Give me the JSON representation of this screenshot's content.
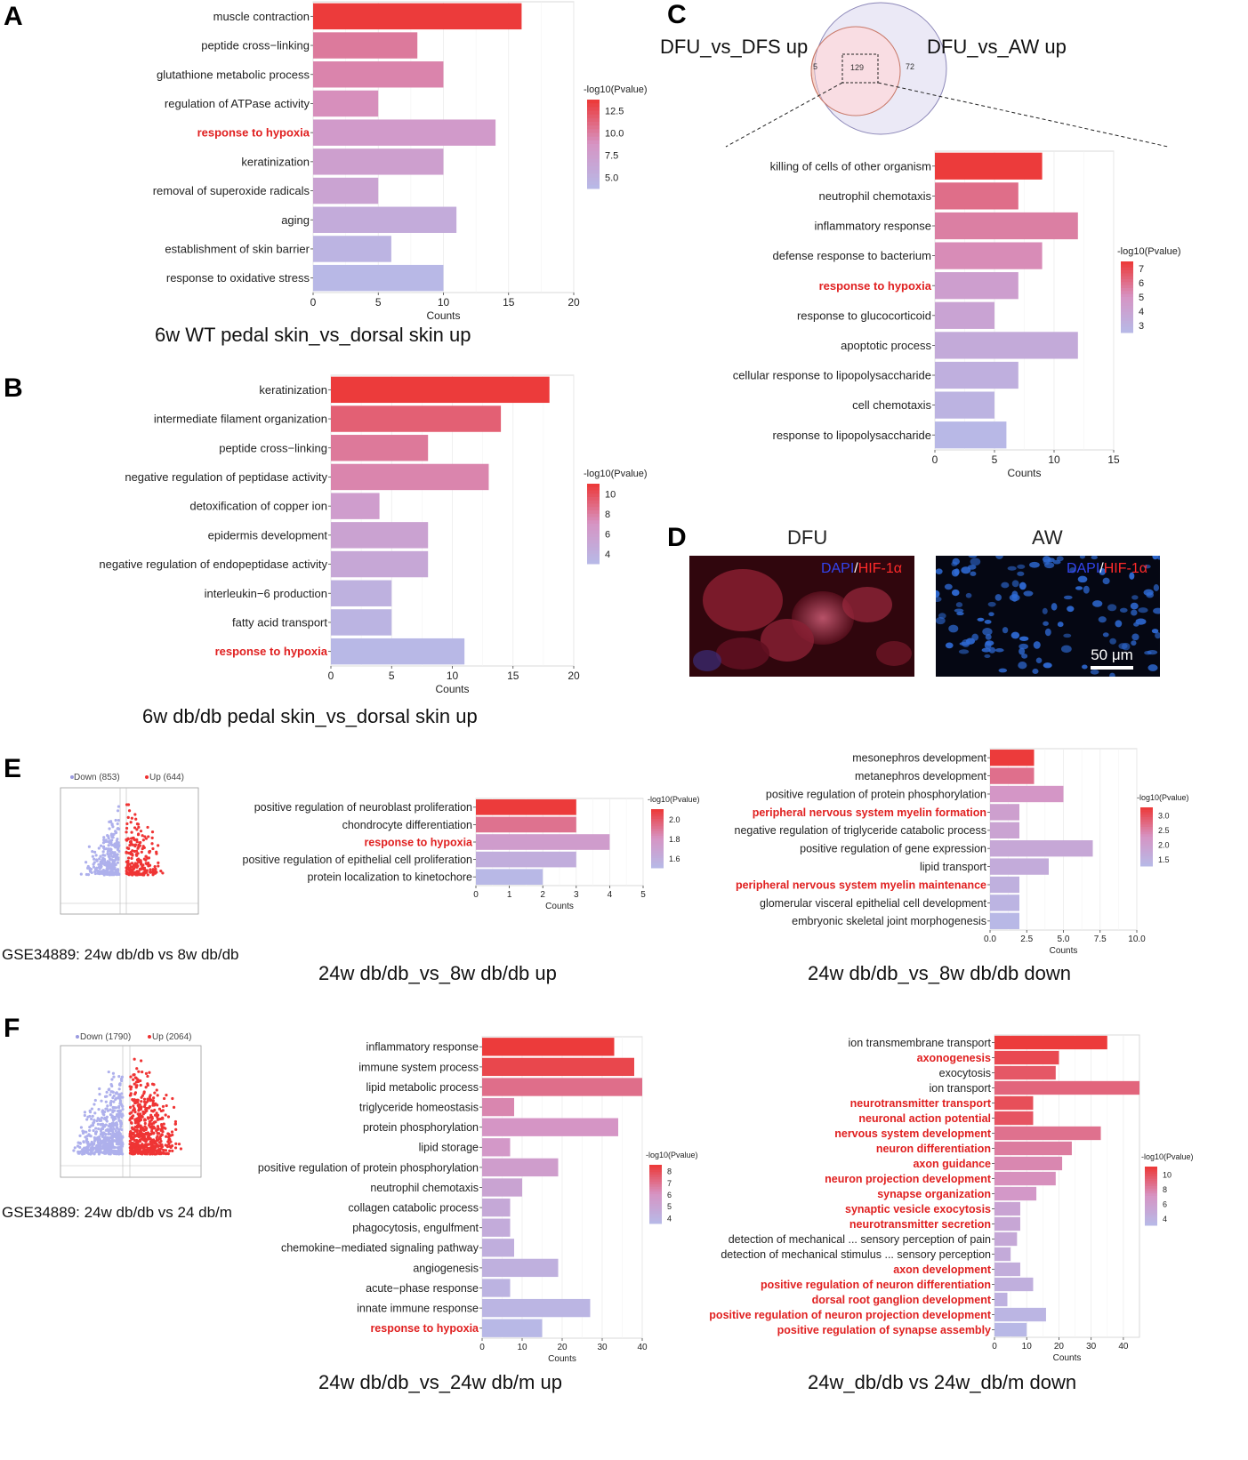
{
  "labels": {
    "A": "A",
    "B": "B",
    "C": "C",
    "D": "D",
    "E": "E",
    "F": "F"
  },
  "captions": {
    "A": "6w WT pedal skin_vs_dorsal skin up",
    "B": "6w db/db pedal skin_vs_dorsal skin up",
    "E1": "24w db/db_vs_8w db/db up",
    "E2": "24w db/db_vs_8w db/db down",
    "F1": "24w db/db_vs_24w db/m up",
    "F2": "24w_db/db vs 24w_db/m down"
  },
  "venn": {
    "left_label": "DFU_vs_DFS up",
    "right_label": "DFU_vs_AW up",
    "left_only": "5",
    "overlap": "129",
    "right_only": "72"
  },
  "micro": {
    "dfu_title": "DFU",
    "aw_title": "AW",
    "dapi": "DAPI",
    "slash": "/",
    "hif": "HIF-1α",
    "scale": "50 μm"
  },
  "volcano_e": {
    "down": "Down (853)",
    "up": "Up (644)",
    "caption": "GSE34889: 24w db/db vs 8w db/db"
  },
  "volcano_f": {
    "down": "Down (1790)",
    "up": "Up (2064)",
    "caption": "GSE34889: 24w db/db vs 24 db/m"
  },
  "chart_data": [
    {
      "id": "A",
      "type": "bar",
      "orientation": "horizontal",
      "categories": [
        "muscle contraction",
        "peptide cross−linking",
        "glutathione metabolic process",
        "regulation of ATPase activity",
        "response to hypoxia",
        "keratinization",
        "removal of superoxide radicals",
        "aging",
        "establishment of skin barrier",
        "response to oxidative stress"
      ],
      "values": [
        16,
        8,
        10,
        5,
        14,
        10,
        5,
        11,
        6,
        10
      ],
      "color_values": [
        13,
        10,
        9.5,
        9,
        8,
        7.5,
        7,
        6,
        5,
        4.5
      ],
      "highlight": [
        "response to hypoxia"
      ],
      "xlabel": "Counts",
      "xlim": [
        0,
        20
      ],
      "xticks": [
        0,
        5,
        10,
        15,
        20
      ],
      "legend": {
        "title": "-log10(Pvalue)",
        "ticks": [
          "12.5",
          "10.0",
          "7.5",
          "5.0"
        ]
      }
    },
    {
      "id": "B",
      "type": "bar",
      "orientation": "horizontal",
      "categories": [
        "keratinization",
        "intermediate filament organization",
        "peptide cross−linking",
        "negative regulation of peptidase activity",
        "detoxification of copper ion",
        "epidermis development",
        "negative regulation of endopeptidase activity",
        "interleukin−6 production",
        "fatty acid transport",
        "response to hypoxia"
      ],
      "values": [
        18,
        14,
        8,
        13,
        4,
        8,
        8,
        5,
        5,
        11
      ],
      "color_values": [
        11,
        9.5,
        8.5,
        8,
        6.5,
        6,
        5.5,
        4.5,
        4.2,
        3.8
      ],
      "highlight": [
        "response to hypoxia"
      ],
      "xlabel": "Counts",
      "xlim": [
        0,
        20
      ],
      "xticks": [
        0,
        5,
        10,
        15,
        20
      ],
      "legend": {
        "title": "-log10(Pvalue)",
        "ticks": [
          "10",
          "8",
          "6",
          "4"
        ]
      }
    },
    {
      "id": "C",
      "type": "bar",
      "orientation": "horizontal",
      "categories": [
        "killing of cells of other organism",
        "neutrophil chemotaxis",
        "inflammatory response",
        "defense response to bacterium",
        "response to hypoxia",
        "response to glucocorticoid",
        "apoptotic process",
        "cellular response to lipopolysaccharide",
        "cell chemotaxis",
        "response to lipopolysaccharide"
      ],
      "values": [
        9,
        7,
        12,
        9,
        7,
        5,
        12,
        7,
        5,
        6
      ],
      "color_values": [
        7.2,
        6,
        5.6,
        5.3,
        4.5,
        4.2,
        3.8,
        3.5,
        3.3,
        3
      ],
      "highlight": [
        "response to hypoxia"
      ],
      "xlabel": "Counts",
      "xlim": [
        0,
        15
      ],
      "xticks": [
        0,
        5,
        10,
        15
      ],
      "legend": {
        "title": "-log10(Pvalue)",
        "ticks": [
          "7",
          "6",
          "5",
          "4",
          "3"
        ]
      }
    },
    {
      "id": "E1",
      "type": "bar",
      "orientation": "horizontal",
      "categories": [
        "positive regulation of neuroblast proliferation",
        "chondrocyte differentiation",
        "response to hypoxia",
        "positive regulation of epithelial cell proliferation",
        "protein localization to kinetochore"
      ],
      "values": [
        3,
        3,
        4,
        3,
        2
      ],
      "color_values": [
        2.1,
        1.9,
        1.7,
        1.55,
        1.45
      ],
      "highlight": [
        "response to hypoxia"
      ],
      "xlabel": "Counts",
      "xlim": [
        0,
        5
      ],
      "xticks": [
        0,
        1,
        2,
        3,
        4,
        5
      ],
      "legend": {
        "title": "-log10(Pvalue)",
        "ticks": [
          "2.0",
          "1.8",
          "1.6"
        ]
      }
    },
    {
      "id": "E2",
      "type": "bar",
      "orientation": "horizontal",
      "categories": [
        "mesonephros development",
        "metanephros development",
        "positive regulation of protein phosphorylation",
        "peripheral nervous system myelin formation",
        "negative regulation of triglyceride catabolic process",
        "positive regulation of gene expression",
        "lipid transport",
        "peripheral nervous system myelin maintenance",
        "glomerular visceral epithelial cell development",
        "embryonic skeletal joint morphogenesis"
      ],
      "values": [
        3,
        3,
        5,
        2,
        2,
        7,
        4,
        2,
        2,
        2
      ],
      "color_values": [
        3.2,
        2.7,
        2.3,
        2.1,
        2,
        1.9,
        1.8,
        1.7,
        1.6,
        1.5
      ],
      "highlight": [
        "peripheral nervous system myelin formation",
        "peripheral nervous system myelin maintenance"
      ],
      "xlabel": "Counts",
      "xlim": [
        0,
        10
      ],
      "xticks": [
        "0.0",
        "2.5",
        "5.0",
        "7.5",
        "10.0"
      ],
      "legend": {
        "title": "-log10(Pvalue)",
        "ticks": [
          "3.0",
          "2.5",
          "2.0",
          "1.5"
        ]
      }
    },
    {
      "id": "F1",
      "type": "bar",
      "orientation": "horizontal",
      "categories": [
        "inflammatory response",
        "immune system process",
        "lipid metabolic process",
        "triglyceride homeostasis",
        "protein phosphorylation",
        "lipid storage",
        "positive regulation of protein phosphorylation",
        "neutrophil chemotaxis",
        "collagen catabolic process",
        "phagocytosis, engulfment",
        "chemokine−mediated signaling pathway",
        "angiogenesis",
        "acute−phase response",
        "innate immune response",
        "response to hypoxia"
      ],
      "values": [
        33,
        38,
        40,
        8,
        34,
        7,
        19,
        10,
        7,
        7,
        8,
        19,
        7,
        27,
        15
      ],
      "color_values": [
        8.5,
        8.2,
        7.2,
        6.6,
        6.2,
        6,
        5.7,
        5.3,
        5,
        4.8,
        4.6,
        4.5,
        4.3,
        4.2,
        4
      ],
      "highlight": [
        "response to hypoxia"
      ],
      "xlabel": "Counts",
      "xlim": [
        0,
        40
      ],
      "xticks": [
        0,
        10,
        20,
        30,
        40
      ],
      "legend": {
        "title": "-log10(Pvalue)",
        "ticks": [
          "8",
          "7",
          "6",
          "5",
          "4"
        ]
      }
    },
    {
      "id": "F2",
      "type": "bar",
      "orientation": "horizontal",
      "categories": [
        "ion transmembrane transport",
        "axonogenesis",
        "exocytosis",
        "ion transport",
        "neurotransmitter transport",
        "neuronal action potential",
        "nervous system development",
        "neuron differentiation",
        "axon guidance",
        "neuron projection development",
        "synapse organization",
        "synaptic vesicle exocytosis",
        "neurotransmitter secretion",
        "detection of mechanical ... sensory perception of pain",
        "detection of mechanical stimulus ... sensory perception",
        "axon development",
        "positive regulation of neuron differentiation",
        "dorsal root ganglion development",
        "positive regulation of neuron projection development",
        "positive regulation of synapse assembly"
      ],
      "values": [
        35,
        20,
        19,
        45,
        12,
        12,
        33,
        24,
        21,
        19,
        13,
        8,
        8,
        7,
        5,
        8,
        12,
        4,
        16,
        10
      ],
      "color_values": [
        10.5,
        10,
        9.5,
        9,
        9.8,
        9.6,
        8.6,
        8.2,
        7.8,
        7.5,
        7,
        6,
        5.8,
        5.6,
        5.4,
        5.2,
        5,
        4.8,
        4.5,
        4.2
      ],
      "highlight": [
        "axonogenesis",
        "neurotransmitter transport",
        "neuronal action potential",
        "nervous system development",
        "neuron differentiation",
        "axon guidance",
        "neuron projection development",
        "synapse organization",
        "synaptic vesicle exocytosis",
        "neurotransmitter secretion",
        "axon development",
        "positive regulation of neuron differentiation",
        "dorsal root ganglion development",
        "positive regulation of neuron projection development",
        "positive regulation of synapse assembly"
      ],
      "xlabel": "Counts",
      "xlim": [
        0,
        45
      ],
      "xticks": [
        0,
        10,
        20,
        30,
        40
      ],
      "legend": {
        "title": "-log10(Pvalue)",
        "ticks": [
          "10",
          "8",
          "6",
          "4"
        ]
      }
    }
  ]
}
